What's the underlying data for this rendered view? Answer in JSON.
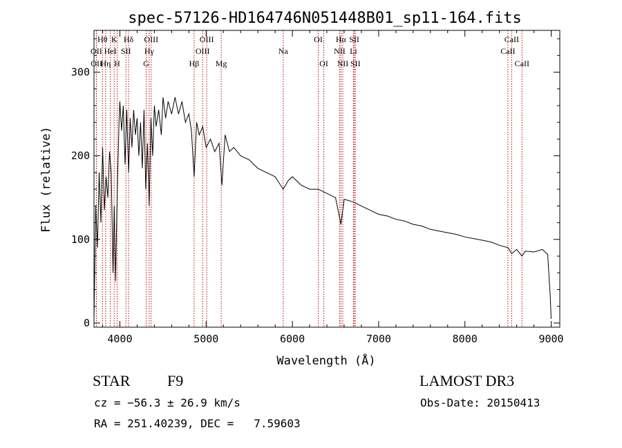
{
  "chart_data": {
    "type": "line",
    "title": "spec-57126-HD164746N051448B01_sp11-164.fits",
    "xlabel": "Wavelength (Å)",
    "ylabel": "Flux (relative)",
    "xlim": [
      3700,
      9100
    ],
    "ylim": [
      -5,
      350
    ],
    "xticks": [
      4000,
      5000,
      6000,
      7000,
      8000,
      9000
    ],
    "yticks": [
      0,
      100,
      200,
      300
    ],
    "grid": false,
    "series": [
      {
        "name": "spectrum",
        "x": [
          3700,
          3720,
          3740,
          3760,
          3780,
          3800,
          3820,
          3840,
          3860,
          3880,
          3900,
          3920,
          3935,
          3950,
          3968,
          3990,
          4000,
          4020,
          4040,
          4060,
          4080,
          4101,
          4120,
          4140,
          4160,
          4180,
          4200,
          4220,
          4240,
          4260,
          4280,
          4300,
          4320,
          4340,
          4360,
          4380,
          4400,
          4420,
          4450,
          4480,
          4500,
          4530,
          4560,
          4600,
          4640,
          4680,
          4720,
          4760,
          4800,
          4830,
          4861,
          4890,
          4920,
          4960,
          5000,
          5050,
          5100,
          5150,
          5183,
          5220,
          5270,
          5320,
          5400,
          5500,
          5600,
          5700,
          5800,
          5893,
          5950,
          6000,
          6100,
          6200,
          6300,
          6400,
          6500,
          6563,
          6600,
          6700,
          6800,
          6900,
          7000,
          7100,
          7200,
          7300,
          7400,
          7500,
          7600,
          7700,
          7800,
          7900,
          8000,
          8100,
          8200,
          8300,
          8400,
          8500,
          8542,
          8600,
          8662,
          8700,
          8800,
          8900,
          8960,
          8990,
          9000
        ],
        "y": [
          5,
          140,
          90,
          180,
          120,
          210,
          135,
          175,
          150,
          205,
          180,
          60,
          140,
          50,
          150,
          240,
          265,
          230,
          260,
          190,
          255,
          180,
          245,
          210,
          255,
          225,
          245,
          200,
          240,
          185,
          255,
          160,
          215,
          140,
          245,
          200,
          260,
          235,
          255,
          225,
          270,
          245,
          265,
          250,
          270,
          250,
          265,
          240,
          250,
          230,
          175,
          240,
          225,
          235,
          210,
          220,
          205,
          215,
          165,
          225,
          205,
          210,
          200,
          195,
          185,
          180,
          175,
          160,
          170,
          175,
          165,
          160,
          160,
          155,
          150,
          118,
          148,
          145,
          140,
          135,
          130,
          128,
          124,
          122,
          118,
          116,
          112,
          110,
          108,
          106,
          103,
          101,
          99,
          97,
          93,
          90,
          83,
          88,
          80,
          86,
          85,
          88,
          82,
          30,
          5
        ]
      }
    ],
    "lines": [
      {
        "label": "Hθ",
        "x": 3798,
        "row": 1
      },
      {
        "label": "OII",
        "x": 3727,
        "row": 2
      },
      {
        "label": "OII",
        "x": 3729,
        "row": 3
      },
      {
        "label": "Hη",
        "x": 3835,
        "row": 3
      },
      {
        "label": "HeI",
        "x": 3889,
        "row": 2
      },
      {
        "label": "K",
        "x": 3934,
        "row": 1
      },
      {
        "label": "H",
        "x": 3968,
        "row": 3
      },
      {
        "label": "SII",
        "x": 4070,
        "row": 2
      },
      {
        "label": "Hδ",
        "x": 4101,
        "row": 1
      },
      {
        "label": "OIII",
        "x": 4363,
        "row": 1
      },
      {
        "label": "Hγ",
        "x": 4340,
        "row": 2
      },
      {
        "label": "G",
        "x": 4305,
        "row": 3
      },
      {
        "label": "Hβ",
        "x": 4861,
        "row": 3
      },
      {
        "label": "OIII",
        "x": 5007,
        "row": 1
      },
      {
        "label": "OIII",
        "x": 4959,
        "row": 2
      },
      {
        "label": "Mg",
        "x": 5175,
        "row": 3
      },
      {
        "label": "Na",
        "x": 5893,
        "row": 2
      },
      {
        "label": "OI",
        "x": 6300,
        "row": 1
      },
      {
        "label": "OI",
        "x": 6364,
        "row": 3
      },
      {
        "label": "Hα",
        "x": 6563,
        "row": 1
      },
      {
        "label": "NII",
        "x": 6548,
        "row": 2
      },
      {
        "label": "NII",
        "x": 6584,
        "row": 3
      },
      {
        "label": "SII",
        "x": 6717,
        "row": 1
      },
      {
        "label": "Li",
        "x": 6708,
        "row": 2
      },
      {
        "label": "SII",
        "x": 6731,
        "row": 3
      },
      {
        "label": "CaII",
        "x": 8542,
        "row": 1
      },
      {
        "label": "CaII",
        "x": 8498,
        "row": 2
      },
      {
        "label": "CaII",
        "x": 8662,
        "row": 3
      }
    ]
  },
  "info": {
    "object_class": "STAR",
    "subclass": "F9",
    "survey": "LAMOST DR3",
    "redshift": "cz = −56.3 ± 26.9 km/s",
    "obs_date": "Obs-Date: 20150413",
    "coords": "RA = 251.40239, DEC =   7.59603"
  },
  "colors": {
    "spectrum": "#000000",
    "line_markers": "#c00000",
    "axes": "#000000"
  }
}
